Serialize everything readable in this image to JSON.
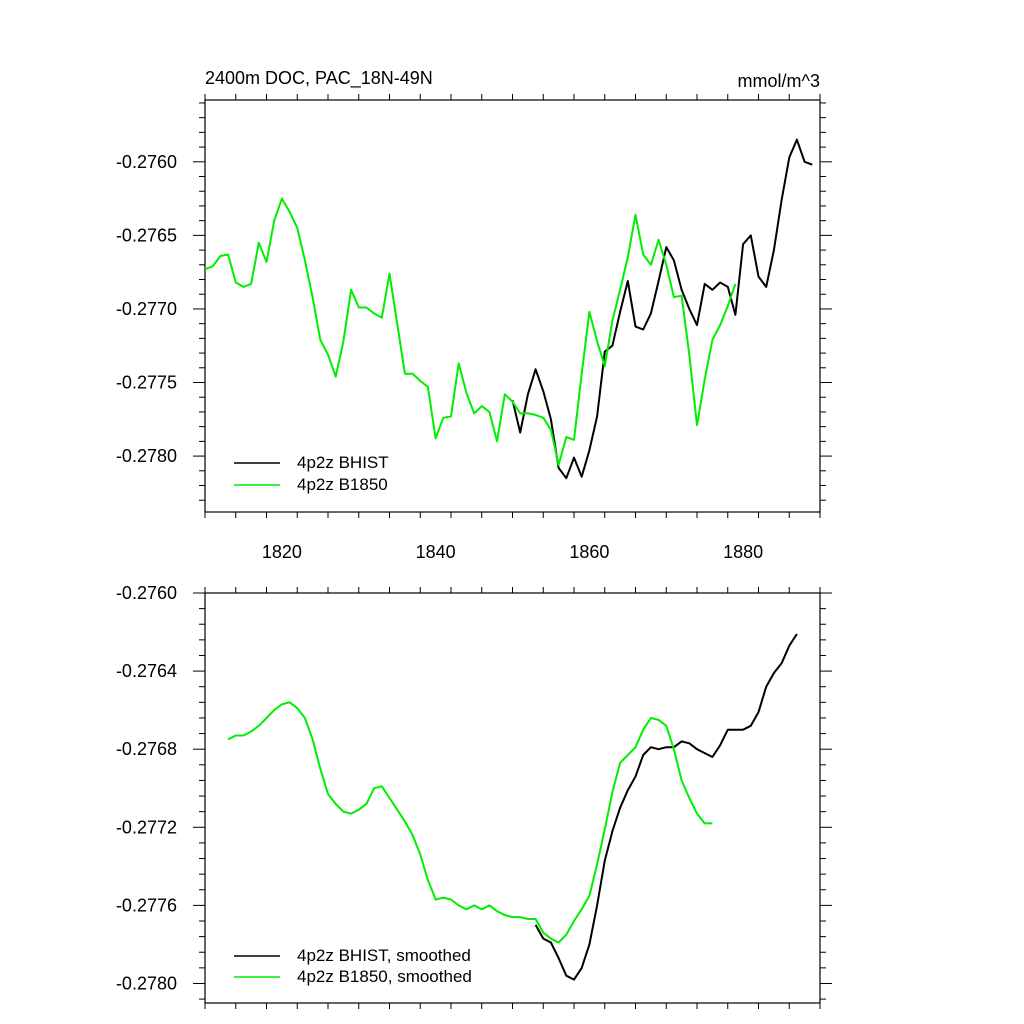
{
  "chart_data": [
    {
      "type": "line",
      "title": "2400m DOC, PAC_18N-49N",
      "units": "mmol/m^3",
      "xlim": [
        1810,
        1890
      ],
      "ylim": [
        -0.27838,
        -0.27558
      ],
      "x_ticks": [
        1820,
        1840,
        1860,
        1880
      ],
      "x_tick_labels": [
        "1820",
        "1840",
        "1860",
        "1880"
      ],
      "y_ticks": [
        -0.276,
        -0.2765,
        -0.277,
        -0.2775,
        -0.278
      ],
      "y_tick_labels": [
        "-0.2760",
        "-0.2765",
        "-0.2770",
        "-0.2775",
        "-0.2780"
      ],
      "legend_position": "bottom-left",
      "series": [
        {
          "name": "4p2z BHIST",
          "color": "#000000",
          "x": [
            1850,
            1851,
            1852,
            1853,
            1854,
            1855,
            1856,
            1857,
            1858,
            1859,
            1860,
            1861,
            1862,
            1863,
            1864,
            1865,
            1866,
            1867,
            1868,
            1869,
            1870,
            1871,
            1872,
            1873,
            1874,
            1875,
            1876,
            1877,
            1878,
            1879,
            1880,
            1881,
            1882,
            1883,
            1884,
            1885,
            1886,
            1887,
            1888,
            1889
          ],
          "y": [
            -0.27762,
            -0.27784,
            -0.27758,
            -0.27741,
            -0.27756,
            -0.27775,
            -0.27808,
            -0.27815,
            -0.27801,
            -0.27814,
            -0.27796,
            -0.27773,
            -0.27729,
            -0.27725,
            -0.27702,
            -0.27681,
            -0.27712,
            -0.27714,
            -0.27703,
            -0.27681,
            -0.27658,
            -0.27667,
            -0.27687,
            -0.277,
            -0.27711,
            -0.27683,
            -0.27687,
            -0.27682,
            -0.27685,
            -0.27704,
            -0.27656,
            -0.2765,
            -0.27678,
            -0.27685,
            -0.2766,
            -0.27626,
            -0.27597,
            -0.27585,
            -0.276,
            -0.27602
          ]
        },
        {
          "name": "4p2z B1850",
          "color": "#00ee00",
          "x": [
            1810,
            1811,
            1812,
            1813,
            1814,
            1815,
            1816,
            1817,
            1818,
            1819,
            1820,
            1821,
            1822,
            1823,
            1824,
            1825,
            1826,
            1827,
            1828,
            1829,
            1830,
            1831,
            1832,
            1833,
            1834,
            1835,
            1836,
            1837,
            1838,
            1839,
            1840,
            1841,
            1842,
            1843,
            1844,
            1845,
            1846,
            1847,
            1848,
            1849,
            1850,
            1851,
            1852,
            1853,
            1854,
            1855,
            1856,
            1857,
            1858,
            1859,
            1860,
            1861,
            1862,
            1863,
            1864,
            1865,
            1866,
            1867,
            1868,
            1869,
            1870,
            1871,
            1872,
            1873,
            1874,
            1875,
            1876,
            1877,
            1878,
            1879
          ],
          "y": [
            -0.27673,
            -0.27671,
            -0.27664,
            -0.27663,
            -0.27682,
            -0.27685,
            -0.27683,
            -0.27655,
            -0.27668,
            -0.2764,
            -0.27625,
            -0.27634,
            -0.27645,
            -0.27667,
            -0.27692,
            -0.27721,
            -0.27731,
            -0.27746,
            -0.27722,
            -0.27687,
            -0.27699,
            -0.27699,
            -0.27703,
            -0.27706,
            -0.27676,
            -0.2771,
            -0.27744,
            -0.27744,
            -0.27749,
            -0.27753,
            -0.27788,
            -0.27774,
            -0.27773,
            -0.27737,
            -0.27757,
            -0.27771,
            -0.27766,
            -0.2777,
            -0.2779,
            -0.27758,
            -0.27763,
            -0.27771,
            -0.27771,
            -0.27772,
            -0.27774,
            -0.27782,
            -0.27806,
            -0.27787,
            -0.27789,
            -0.27744,
            -0.27702,
            -0.27722,
            -0.27739,
            -0.27708,
            -0.27687,
            -0.27665,
            -0.27636,
            -0.27663,
            -0.2767,
            -0.27653,
            -0.2767,
            -0.27692,
            -0.27691,
            -0.27731,
            -0.27779,
            -0.27748,
            -0.27721,
            -0.27711,
            -0.27698,
            -0.27683
          ]
        }
      ]
    },
    {
      "type": "line",
      "xlim": [
        1810,
        1890
      ],
      "ylim": [
        -0.2781,
        -0.276
      ],
      "x_ticks": [
        1820,
        1840,
        1860,
        1880
      ],
      "y_ticks": [
        -0.276,
        -0.2764,
        -0.2768,
        -0.2772,
        -0.2776,
        -0.278
      ],
      "y_tick_labels": [
        "-0.2760",
        "-0.2764",
        "-0.2768",
        "-0.2772",
        "-0.2776",
        "-0.2780"
      ],
      "legend_position": "bottom-left",
      "series": [
        {
          "name": "4p2z BHIST, smoothed",
          "color": "#000000",
          "x": [
            1853,
            1854,
            1855,
            1856,
            1857,
            1858,
            1859,
            1860,
            1861,
            1862,
            1863,
            1864,
            1865,
            1866,
            1867,
            1868,
            1869,
            1870,
            1871,
            1872,
            1873,
            1874,
            1875,
            1876,
            1877,
            1878,
            1879,
            1880,
            1881,
            1882,
            1883,
            1884,
            1885,
            1886,
            1887
          ],
          "y": [
            -0.2777,
            -0.27777,
            -0.27779,
            -0.27787,
            -0.27796,
            -0.27798,
            -0.27792,
            -0.2778,
            -0.2776,
            -0.27737,
            -0.27722,
            -0.2771,
            -0.27701,
            -0.27694,
            -0.27683,
            -0.27679,
            -0.2768,
            -0.27679,
            -0.27679,
            -0.27676,
            -0.27677,
            -0.2768,
            -0.27682,
            -0.27684,
            -0.27678,
            -0.2767,
            -0.2767,
            -0.2767,
            -0.27668,
            -0.27661,
            -0.27648,
            -0.27641,
            -0.27636,
            -0.27627,
            -0.27621
          ]
        },
        {
          "name": "4p2z B1850, smoothed",
          "color": "#00ee00",
          "x": [
            1813,
            1814,
            1815,
            1816,
            1817,
            1818,
            1819,
            1820,
            1821,
            1822,
            1823,
            1824,
            1825,
            1826,
            1827,
            1828,
            1829,
            1830,
            1831,
            1832,
            1833,
            1834,
            1835,
            1836,
            1837,
            1838,
            1839,
            1840,
            1841,
            1842,
            1843,
            1844,
            1845,
            1846,
            1847,
            1848,
            1849,
            1850,
            1851,
            1852,
            1853,
            1854,
            1855,
            1856,
            1857,
            1858,
            1859,
            1860,
            1861,
            1862,
            1863,
            1864,
            1865,
            1866,
            1867,
            1868,
            1869,
            1870,
            1871,
            1872,
            1873,
            1874,
            1875,
            1876
          ],
          "y": [
            -0.27675,
            -0.27673,
            -0.27673,
            -0.27671,
            -0.27668,
            -0.27664,
            -0.2766,
            -0.27657,
            -0.27656,
            -0.27659,
            -0.27664,
            -0.27675,
            -0.2769,
            -0.27703,
            -0.27708,
            -0.27712,
            -0.27713,
            -0.27711,
            -0.27708,
            -0.277,
            -0.27699,
            -0.27705,
            -0.27711,
            -0.27717,
            -0.27724,
            -0.27734,
            -0.27747,
            -0.27757,
            -0.27756,
            -0.27757,
            -0.2776,
            -0.27762,
            -0.2776,
            -0.27762,
            -0.2776,
            -0.27763,
            -0.27765,
            -0.27766,
            -0.27766,
            -0.27767,
            -0.27767,
            -0.27774,
            -0.27777,
            -0.27779,
            -0.27775,
            -0.27768,
            -0.27762,
            -0.27755,
            -0.27739,
            -0.27721,
            -0.27702,
            -0.27687,
            -0.27683,
            -0.27679,
            -0.2767,
            -0.27664,
            -0.27665,
            -0.27668,
            -0.2768,
            -0.27696,
            -0.27705,
            -0.27713,
            -0.27718,
            -0.27718
          ]
        }
      ]
    }
  ]
}
